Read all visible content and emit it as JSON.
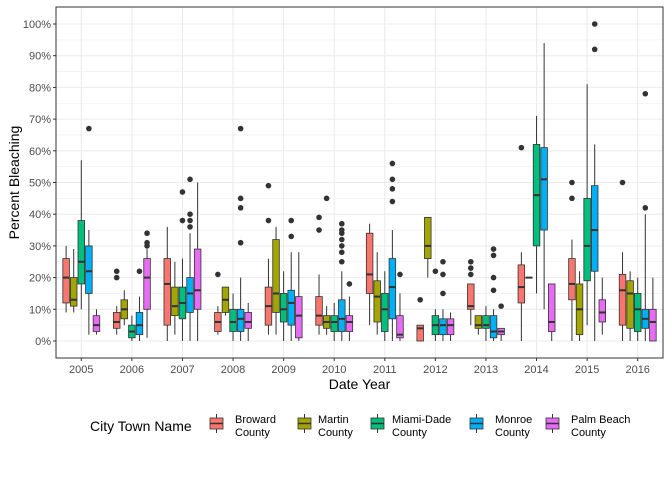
{
  "chart_data": {
    "type": "box",
    "xlabel": "Date Year",
    "ylabel": "Percent Bleaching",
    "ylim": [
      0,
      100
    ],
    "y_tick_format": "percent",
    "y_ticks": [
      0,
      10,
      20,
      30,
      40,
      50,
      60,
      70,
      80,
      90,
      100
    ],
    "y_tick_labels": [
      "0%",
      "10%",
      "20%",
      "30%",
      "40%",
      "50%",
      "60%",
      "70%",
      "80%",
      "90%",
      "100%"
    ],
    "grid": true,
    "legend_position": "bottom",
    "legend_title": "City Town Name",
    "categories": [
      "2005",
      "2006",
      "2007",
      "2008",
      "2009",
      "2010",
      "2011",
      "2012",
      "2013",
      "2014",
      "2015",
      "2016"
    ],
    "series": [
      {
        "name": "Broward County",
        "label_lines": [
          "Broward",
          "County"
        ],
        "color": "#F8766D",
        "boxes": [
          {
            "year": "2005",
            "min": 9,
            "q1": 12,
            "median": 20,
            "q3": 26,
            "max": 30,
            "outliers": []
          },
          {
            "year": "2006",
            "min": 2,
            "q1": 4,
            "median": 6,
            "q3": 9,
            "max": 11,
            "outliers": [
              20,
              22
            ]
          },
          {
            "year": "2007",
            "min": 0,
            "q1": 5,
            "median": 18,
            "q3": 26,
            "max": 36,
            "outliers": []
          },
          {
            "year": "2008",
            "min": 2,
            "q1": 3,
            "median": 6,
            "q3": 9,
            "max": 11,
            "outliers": [
              21
            ]
          },
          {
            "year": "2009",
            "min": 2,
            "q1": 5,
            "median": 11,
            "q3": 17,
            "max": 26,
            "outliers": [
              38,
              49
            ]
          },
          {
            "year": "2010",
            "min": 2,
            "q1": 5,
            "median": 8,
            "q3": 14,
            "max": 21,
            "outliers": [
              35,
              39
            ]
          },
          {
            "year": "2011",
            "min": 5,
            "q1": 15,
            "median": 21,
            "q3": 34,
            "max": 37,
            "outliers": []
          },
          {
            "year": "2012",
            "min": 0,
            "q1": 0,
            "median": 4,
            "q3": 5,
            "max": 5,
            "outliers": [
              13
            ]
          },
          {
            "year": "2013",
            "min": 5,
            "q1": 10,
            "median": 11,
            "q3": 18,
            "max": 18,
            "outliers": [
              21,
              23,
              25
            ]
          },
          {
            "year": "2014",
            "min": 0,
            "q1": 12,
            "median": 17,
            "q3": 24,
            "max": 28,
            "outliers": [
              61
            ]
          },
          {
            "year": "2015",
            "min": 0,
            "q1": 13,
            "median": 18,
            "q3": 26,
            "max": 32,
            "outliers": [
              45,
              50
            ]
          },
          {
            "year": "2016",
            "min": 0,
            "q1": 5,
            "median": 16,
            "q3": 21,
            "max": 28,
            "outliers": [
              50
            ]
          }
        ]
      },
      {
        "name": "Martin County",
        "label_lines": [
          "Martin",
          "County"
        ],
        "color": "#A3A500",
        "boxes": [
          {
            "year": "2005",
            "min": 9,
            "q1": 11,
            "median": 13,
            "q3": 20,
            "max": 29,
            "outliers": []
          },
          {
            "year": "2006",
            "min": 5,
            "q1": 7,
            "median": 10,
            "q3": 13,
            "max": 16,
            "outliers": []
          },
          {
            "year": "2007",
            "min": 2,
            "q1": 8,
            "median": 11,
            "q3": 17,
            "max": 25,
            "outliers": []
          },
          {
            "year": "2008",
            "min": 8,
            "q1": 9,
            "median": 13,
            "q3": 17,
            "max": 17,
            "outliers": []
          },
          {
            "year": "2009",
            "min": 2,
            "q1": 9,
            "median": 15,
            "q3": 32,
            "max": 36,
            "outliers": []
          },
          {
            "year": "2010",
            "min": 2,
            "q1": 4,
            "median": 6,
            "q3": 8,
            "max": 11,
            "outliers": [
              45
            ]
          },
          {
            "year": "2011",
            "min": 2,
            "q1": 6,
            "median": 14,
            "q3": 19,
            "max": 28,
            "outliers": []
          },
          {
            "year": "2012",
            "min": 20,
            "q1": 26,
            "median": 30,
            "q3": 39,
            "max": 39,
            "outliers": []
          },
          {
            "year": "2013",
            "min": 2,
            "q1": 4,
            "median": 5,
            "q3": 8,
            "max": 8,
            "outliers": []
          },
          {
            "year": "2014",
            "min": 20,
            "q1": 20,
            "median": 20,
            "q3": 20,
            "max": 20,
            "outliers": []
          },
          {
            "year": "2015",
            "min": 0,
            "q1": 2,
            "median": 10,
            "q3": 18,
            "max": 22,
            "outliers": []
          },
          {
            "year": "2016",
            "min": 0,
            "q1": 4,
            "median": 15,
            "q3": 19,
            "max": 22,
            "outliers": []
          }
        ]
      },
      {
        "name": "Miami-Dade County",
        "label_lines": [
          "Miami-Dade",
          "County"
        ],
        "color": "#00BF7D",
        "boxes": [
          {
            "year": "2005",
            "min": 10,
            "q1": 18,
            "median": 25,
            "q3": 38,
            "max": 57,
            "outliers": []
          },
          {
            "year": "2006",
            "min": 0,
            "q1": 1,
            "median": 3,
            "q3": 5,
            "max": 8,
            "outliers": []
          },
          {
            "year": "2007",
            "min": 0,
            "q1": 7,
            "median": 12,
            "q3": 17,
            "max": 26,
            "outliers": [
              38,
              47
            ]
          },
          {
            "year": "2008",
            "min": 0,
            "q1": 3,
            "median": 6,
            "q3": 10,
            "max": 15,
            "outliers": []
          },
          {
            "year": "2009",
            "min": 0,
            "q1": 6,
            "median": 10,
            "q3": 15,
            "max": 22,
            "outliers": []
          },
          {
            "year": "2010",
            "min": 0,
            "q1": 3,
            "median": 6,
            "q3": 8,
            "max": 12,
            "outliers": []
          },
          {
            "year": "2011",
            "min": 0,
            "q1": 3,
            "median": 10,
            "q3": 15,
            "max": 22,
            "outliers": []
          },
          {
            "year": "2012",
            "min": 0,
            "q1": 2,
            "median": 5,
            "q3": 8,
            "max": 10,
            "outliers": [
              22
            ]
          },
          {
            "year": "2013",
            "min": 0,
            "q1": 4,
            "median": 5,
            "q3": 8,
            "max": 11,
            "outliers": []
          },
          {
            "year": "2014",
            "min": 15,
            "q1": 30,
            "median": 46,
            "q3": 62,
            "max": 71,
            "outliers": []
          },
          {
            "year": "2015",
            "min": 5,
            "q1": 19,
            "median": 30,
            "q3": 45,
            "max": 81,
            "outliers": []
          },
          {
            "year": "2016",
            "min": 0,
            "q1": 3,
            "median": 10,
            "q3": 15,
            "max": 20,
            "outliers": []
          }
        ]
      },
      {
        "name": "Monroe County",
        "label_lines": [
          "Monroe",
          "County"
        ],
        "color": "#00B0F6",
        "boxes": [
          {
            "year": "2005",
            "min": 2,
            "q1": 15,
            "median": 22,
            "q3": 30,
            "max": 35,
            "outliers": [
              67
            ]
          },
          {
            "year": "2006",
            "min": 0,
            "q1": 2,
            "median": 5,
            "q3": 9,
            "max": 14,
            "outliers": [
              22
            ]
          },
          {
            "year": "2007",
            "min": 0,
            "q1": 9,
            "median": 15,
            "q3": 20,
            "max": 34,
            "outliers": [
              36,
              38,
              40,
              51
            ]
          },
          {
            "year": "2008",
            "min": 0,
            "q1": 3,
            "median": 7,
            "q3": 10,
            "max": 20,
            "outliers": [
              31,
              42,
              45,
              67
            ]
          },
          {
            "year": "2009",
            "min": 0,
            "q1": 5,
            "median": 12,
            "q3": 16,
            "max": 28,
            "outliers": [
              33,
              38
            ]
          },
          {
            "year": "2010",
            "min": 0,
            "q1": 3,
            "median": 7,
            "q3": 13,
            "max": 22,
            "outliers": [
              25,
              28,
              30,
              32,
              34,
              35,
              37
            ]
          },
          {
            "year": "2011",
            "min": 0,
            "q1": 7,
            "median": 17,
            "q3": 26,
            "max": 35,
            "outliers": [
              44,
              48,
              51,
              56
            ]
          },
          {
            "year": "2012",
            "min": 0,
            "q1": 2,
            "median": 5,
            "q3": 7,
            "max": 10,
            "outliers": [
              15,
              21,
              25
            ]
          },
          {
            "year": "2013",
            "min": 0,
            "q1": 1,
            "median": 3,
            "q3": 8,
            "max": 10,
            "outliers": [
              16,
              20,
              27,
              29
            ]
          },
          {
            "year": "2014",
            "min": 10,
            "q1": 35,
            "median": 51,
            "q3": 61,
            "max": 94,
            "outliers": []
          },
          {
            "year": "2015",
            "min": 0,
            "q1": 22,
            "median": 35,
            "q3": 49,
            "max": 62,
            "outliers": [
              92,
              100
            ]
          },
          {
            "year": "2016",
            "min": 0,
            "q1": 4,
            "median": 7,
            "q3": 10,
            "max": 40,
            "outliers": [
              42,
              78
            ]
          }
        ]
      },
      {
        "name": "Palm Beach County",
        "label_lines": [
          "Palm Beach",
          "County"
        ],
        "color": "#E76BF3",
        "boxes": [
          {
            "year": "2005",
            "min": 2,
            "q1": 3,
            "median": 5,
            "q3": 8,
            "max": 10,
            "outliers": []
          },
          {
            "year": "2006",
            "min": 1,
            "q1": 10,
            "median": 20,
            "q3": 26,
            "max": 29,
            "outliers": [
              30,
              31,
              34
            ]
          },
          {
            "year": "2007",
            "min": 0,
            "q1": 10,
            "median": 16,
            "q3": 29,
            "max": 50,
            "outliers": []
          },
          {
            "year": "2008",
            "min": 0,
            "q1": 4,
            "median": 6,
            "q3": 9,
            "max": 12,
            "outliers": []
          },
          {
            "year": "2009",
            "min": 0,
            "q1": 1,
            "median": 8,
            "q3": 14,
            "max": 28,
            "outliers": []
          },
          {
            "year": "2010",
            "min": 0,
            "q1": 3,
            "median": 6,
            "q3": 8,
            "max": 14,
            "outliers": [
              18
            ]
          },
          {
            "year": "2011",
            "min": 0,
            "q1": 1,
            "median": 2,
            "q3": 8,
            "max": 15,
            "outliers": [
              21
            ]
          },
          {
            "year": "2012",
            "min": 0,
            "q1": 2,
            "median": 5,
            "q3": 7,
            "max": 9,
            "outliers": []
          },
          {
            "year": "2013",
            "min": 0,
            "q1": 2,
            "median": 3,
            "q3": 4,
            "max": 4,
            "outliers": [
              11
            ]
          },
          {
            "year": "2014",
            "min": 0,
            "q1": 3,
            "median": 6,
            "q3": 18,
            "max": 18,
            "outliers": []
          },
          {
            "year": "2015",
            "min": 2,
            "q1": 6,
            "median": 9,
            "q3": 13,
            "max": 20,
            "outliers": []
          },
          {
            "year": "2016",
            "min": 0,
            "q1": 0,
            "median": 6,
            "q3": 10,
            "max": 20,
            "outliers": []
          }
        ]
      }
    ]
  }
}
